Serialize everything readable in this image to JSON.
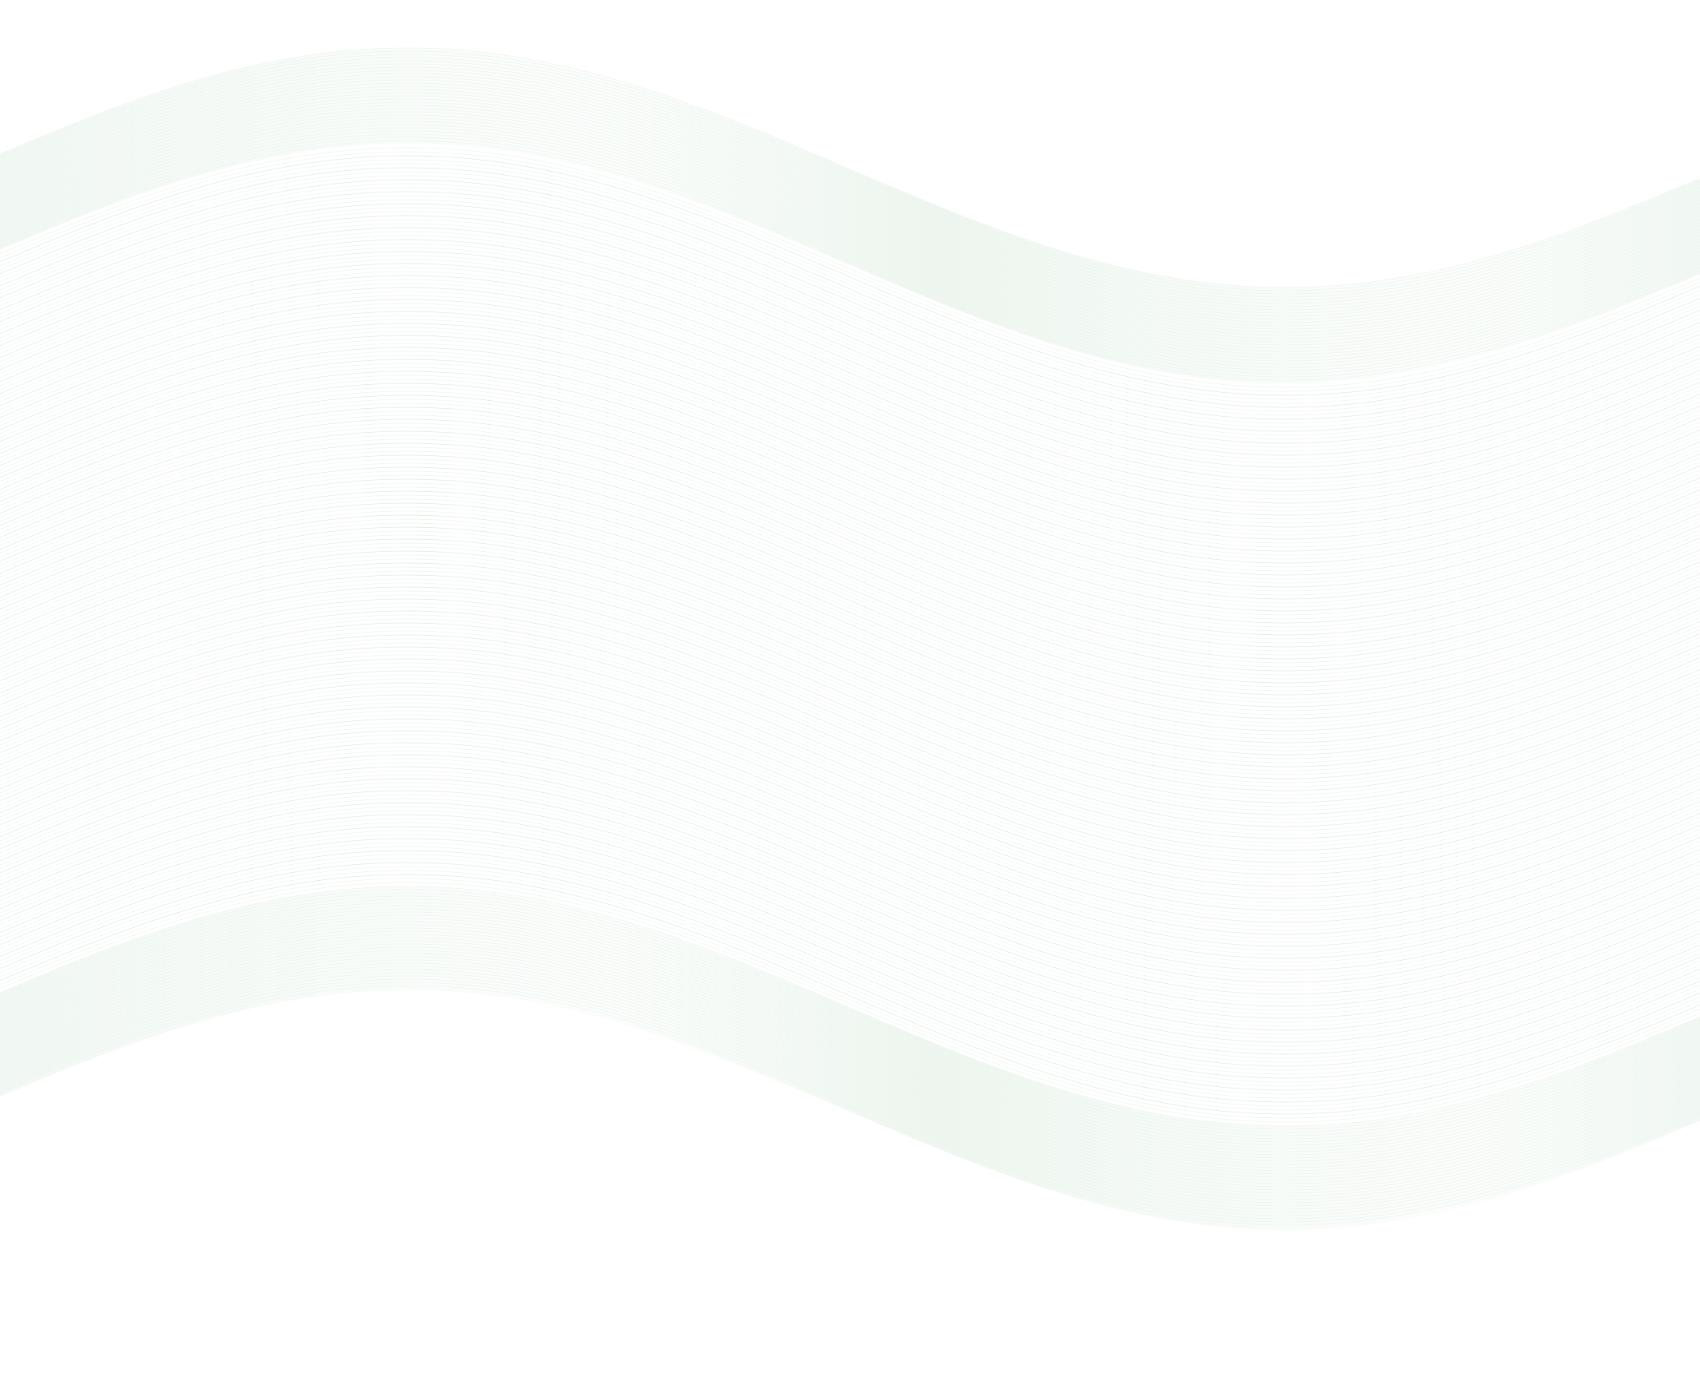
{
  "colors": {
    "background": "#ffffff",
    "band": "#e6f2e8",
    "band_edge": "#f4faf5",
    "line": "#d4e8d8",
    "line_light": "#e9f3eb"
  },
  "decoration": {
    "motif": "wave-flag-banner",
    "band_count": 2,
    "fine_line_fill": true
  }
}
